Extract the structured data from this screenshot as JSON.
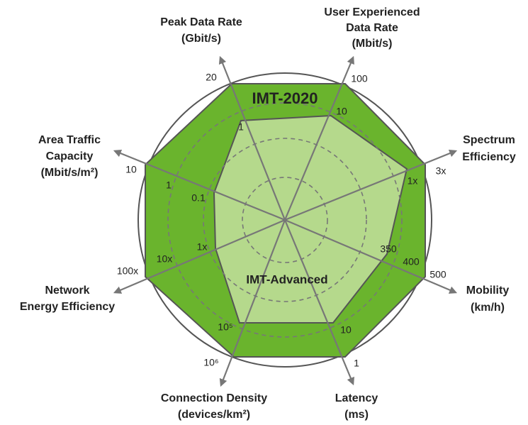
{
  "diagram": {
    "outer_label": "IMT-2020",
    "inner_label": "IMT-Advanced",
    "axes": [
      {
        "name": [
          "Peak Data Rate",
          "(Gbit/s)"
        ],
        "ticks": [
          "20",
          "1"
        ]
      },
      {
        "name": [
          "User Experienced",
          "Data Rate",
          "(Mbit/s)"
        ],
        "ticks": [
          "100",
          "10"
        ]
      },
      {
        "name": [
          "Spectrum",
          "Efficiency"
        ],
        "ticks": [
          "3x",
          "1x"
        ]
      },
      {
        "name": [
          "Mobility",
          "(km/h)"
        ],
        "ticks": [
          "500",
          "400",
          "350"
        ]
      },
      {
        "name": [
          "Latency",
          "(ms)"
        ],
        "ticks": [
          "1",
          "10"
        ]
      },
      {
        "name": [
          "Connection Density",
          "(devices/km²)"
        ],
        "ticks": [
          "10⁶",
          "10⁵"
        ]
      },
      {
        "name": [
          "Network",
          "Energy Efficiency"
        ],
        "ticks": [
          "100x",
          "10x",
          "1x"
        ]
      },
      {
        "name": [
          "Area Traffic",
          "Capacity",
          "(Mbit/s/m²)"
        ],
        "ticks": [
          "10",
          "1",
          "0.1"
        ]
      }
    ]
  }
}
